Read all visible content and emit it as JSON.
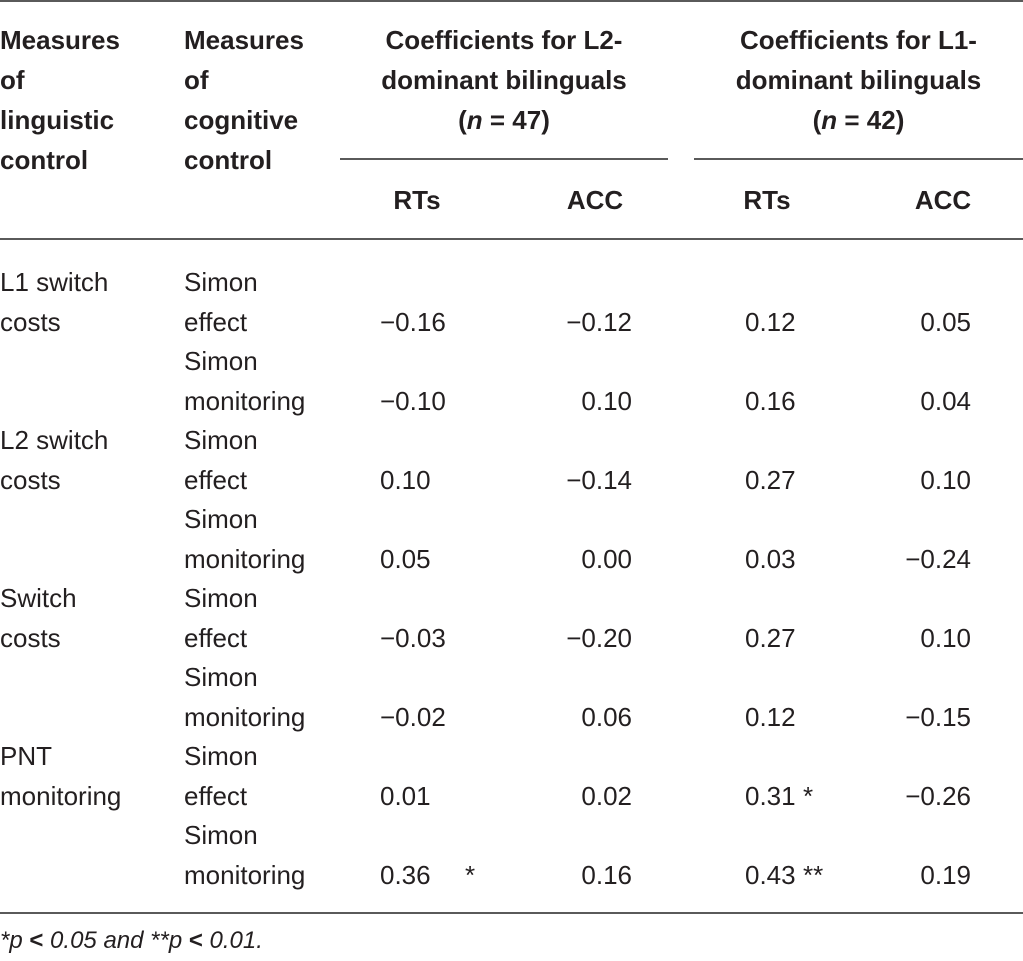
{
  "header": {
    "col1": [
      "Measures",
      "of",
      "linguistic",
      "control"
    ],
    "col2": [
      "Measures",
      "of",
      "cognitive",
      "control"
    ],
    "group_l2": {
      "line1": "Coefficients for L2-",
      "line2": "dominant bilinguals",
      "n_var": "n",
      "n_rest": " = 47)"
    },
    "group_l1": {
      "line1": "Coefficients for L1-",
      "line2": "dominant bilinguals",
      "n_var": "n",
      "n_rest": " = 42)"
    },
    "sub": {
      "rts": "RTs",
      "acc": "ACC"
    }
  },
  "rows": [
    {
      "ling": [
        "L1 switch",
        "costs"
      ],
      "cog": [
        "Simon",
        "effect"
      ],
      "l2_rts": "−0.16",
      "l2_rts_star": "",
      "l2_acc": "−0.12",
      "l1_rts": "0.12",
      "l1_rts_star": "",
      "l1_acc": "0.05"
    },
    {
      "ling": [
        "",
        ""
      ],
      "cog": [
        "Simon",
        "monitoring"
      ],
      "l2_rts": "−0.10",
      "l2_rts_star": "",
      "l2_acc": "0.10",
      "l1_rts": "0.16",
      "l1_rts_star": "",
      "l1_acc": "0.04"
    },
    {
      "ling": [
        "L2 switch",
        "costs"
      ],
      "cog": [
        "Simon",
        "effect"
      ],
      "l2_rts": "0.10",
      "l2_rts_star": "",
      "l2_acc": "−0.14",
      "l1_rts": "0.27",
      "l1_rts_star": "",
      "l1_acc": "0.10"
    },
    {
      "ling": [
        "",
        ""
      ],
      "cog": [
        "Simon",
        "monitoring"
      ],
      "l2_rts": "0.05",
      "l2_rts_star": "",
      "l2_acc": "0.00",
      "l1_rts": "0.03",
      "l1_rts_star": "",
      "l1_acc": "−0.24"
    },
    {
      "ling": [
        "Switch",
        "costs"
      ],
      "cog": [
        "Simon",
        "effect"
      ],
      "l2_rts": "−0.03",
      "l2_rts_star": "",
      "l2_acc": "−0.20",
      "l1_rts": "0.27",
      "l1_rts_star": "",
      "l1_acc": "0.10"
    },
    {
      "ling": [
        "",
        ""
      ],
      "cog": [
        "Simon",
        "monitoring"
      ],
      "l2_rts": "−0.02",
      "l2_rts_star": "",
      "l2_acc": "0.06",
      "l1_rts": "0.12",
      "l1_rts_star": "",
      "l1_acc": "−0.15"
    },
    {
      "ling": [
        "PNT",
        "monitoring"
      ],
      "cog": [
        "Simon",
        "effect"
      ],
      "l2_rts": "0.01",
      "l2_rts_star": "",
      "l2_acc": "0.02",
      "l1_rts": "0.31",
      "l1_rts_star": "*",
      "l1_acc": "−0.26"
    },
    {
      "ling": [
        "",
        ""
      ],
      "cog": [
        "Simon",
        "monitoring"
      ],
      "l2_rts": "0.36",
      "l2_rts_star": "*",
      "l2_acc": "0.16",
      "l1_rts": "0.43",
      "l1_rts_star": "**",
      "l1_acc": "0.19"
    }
  ],
  "footnote": {
    "s1": "*",
    "p1": "p",
    "lt1": "<",
    "v1": " 0.05 and **",
    "p2": "p",
    "lt2": "<",
    "v2": " 0.01."
  }
}
